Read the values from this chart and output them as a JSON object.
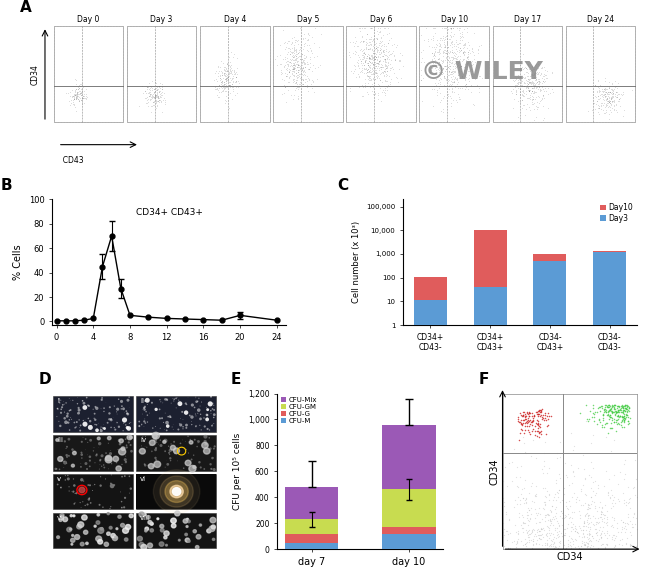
{
  "panel_A_days": [
    "Day 0",
    "Day 3",
    "Day 4",
    "Day 5",
    "Day 6",
    "Day 10",
    "Day 17",
    "Day 24"
  ],
  "panel_B_x": [
    0,
    1,
    2,
    3,
    4,
    5,
    6,
    7,
    8,
    10,
    12,
    14,
    16,
    18,
    20,
    24
  ],
  "panel_B_y": [
    0.5,
    0.5,
    0.5,
    1.0,
    2.5,
    45.0,
    70.0,
    27.0,
    5.0,
    3.5,
    2.5,
    2.0,
    1.5,
    1.0,
    5.0,
    1.0
  ],
  "panel_B_yerr": [
    0,
    0,
    0,
    0,
    0,
    10,
    12,
    8,
    0,
    0,
    0,
    0,
    0,
    0,
    3,
    0
  ],
  "panel_B_label": "CD34+ CD43+",
  "panel_C_categories": [
    "CD34+\nCD43-",
    "CD34+\nCD43+",
    "CD34-\nCD43+",
    "CD34-\nCD43-"
  ],
  "panel_C_day3": [
    12,
    40,
    500,
    1200
  ],
  "panel_C_day10": [
    100,
    10000,
    500,
    100
  ],
  "panel_C_color_day3": "#5b9bd5",
  "panel_C_color_day10": "#e05c5c",
  "panel_E_day7_CFU_M": 50,
  "panel_E_day7_CFU_G": 70,
  "panel_E_day7_CFU_GM": 110,
  "panel_E_day7_CFU_Mix": 250,
  "panel_E_day10_CFU_M": 120,
  "panel_E_day10_CFU_G": 50,
  "panel_E_day10_CFU_GM": 290,
  "panel_E_day10_CFU_Mix": 500,
  "panel_E_color_CFU_Mix": "#9b59b6",
  "panel_E_color_CFU_GM": "#c8dc50",
  "panel_E_color_CFU_G": "#e05c5c",
  "panel_E_color_CFU_M": "#5b9bd5",
  "wiley_color": "#888888"
}
